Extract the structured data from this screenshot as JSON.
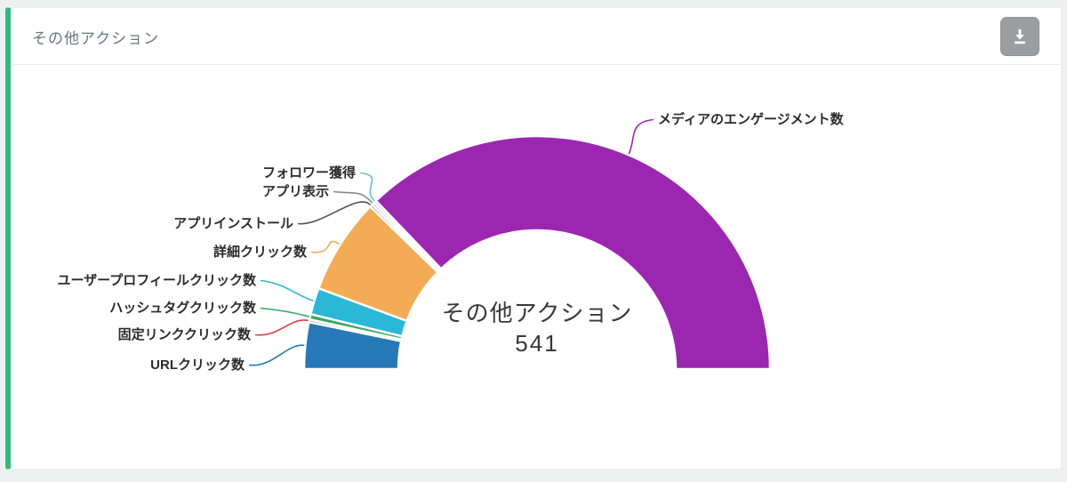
{
  "card": {
    "title": "その他アクション"
  },
  "icons": {
    "download": "arrow-down-to-line"
  },
  "chart_data": {
    "type": "pie",
    "variant": "half-donut",
    "title": "その他アクション",
    "center_label": "その他アクション",
    "total": 541,
    "legend_position": "labels-with-leader-lines",
    "segments": [
      {
        "label": "URLクリック数",
        "value": 35,
        "color": "#2778b7"
      },
      {
        "label": "固定リンククリック数",
        "value": 2,
        "color": "#e23b41"
      },
      {
        "label": "ハッシュタグクリック数",
        "value": 4,
        "color": "#35a966"
      },
      {
        "label": "ユーザープロフィールクリック数",
        "value": 20,
        "color": "#29b8d8"
      },
      {
        "label": "詳細クリック数",
        "value": 72,
        "color": "#f4ab55"
      },
      {
        "label": "アプリインストール",
        "value": 2,
        "color": "#4d5357"
      },
      {
        "label": "アプリ表示",
        "value": 2,
        "color": "#868b8f"
      },
      {
        "label": "フォロワー獲得",
        "value": 2,
        "color": "#62c2b5"
      },
      {
        "label": "メディアのエンゲージメント数",
        "value": 402,
        "color": "#9b27b1"
      }
    ]
  }
}
